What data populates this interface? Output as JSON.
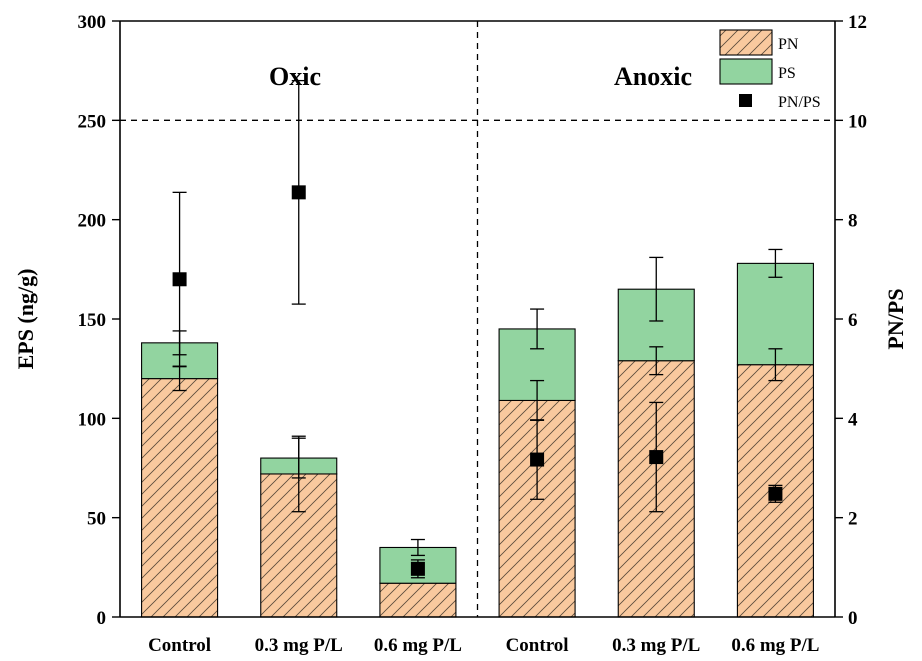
{
  "chart_data": {
    "type": "bar",
    "stacked": true,
    "categories": [
      "Control",
      "0.3 mg P/L",
      "0.6 mg P/L",
      "Control",
      "0.3 mg P/L",
      "0.6 mg P/L"
    ],
    "groups": [
      {
        "label": "Oxic",
        "indices": [
          0,
          1,
          2
        ]
      },
      {
        "label": "Anoxic",
        "indices": [
          3,
          4,
          5
        ]
      }
    ],
    "series": [
      {
        "name": "PN",
        "axis": "left",
        "kind": "bar",
        "pattern": "hatched",
        "color": "#F9C99E",
        "values": [
          120,
          72,
          17,
          109,
          129,
          127
        ],
        "error": [
          6,
          19,
          0,
          10,
          7,
          8
        ]
      },
      {
        "name": "PS",
        "axis": "left",
        "kind": "bar",
        "color": "#92D4A0",
        "values": [
          18,
          8,
          18,
          36,
          36,
          51
        ],
        "error": [
          6,
          10,
          4,
          10,
          16,
          7
        ]
      },
      {
        "name": "PN/PS",
        "axis": "right",
        "kind": "scatter",
        "marker": "square",
        "color": "#000000",
        "values": [
          6.8,
          8.55,
          0.97,
          3.17,
          3.22,
          2.48
        ],
        "error": [
          1.75,
          2.25,
          0.18,
          0.8,
          1.1,
          0.17
        ]
      }
    ],
    "ylabel": "EPS (ng/g)",
    "ylabel_right": "PN/PS",
    "xlabel": "",
    "ylim": [
      0,
      300
    ],
    "yticks": [
      0,
      50,
      100,
      150,
      200,
      250,
      300
    ],
    "ylim_right": [
      0,
      12
    ],
    "yticks_right": [
      0,
      2,
      4,
      6,
      8,
      10,
      12
    ],
    "reference_line_right": 10,
    "group_divider": "dashed vertical line between groups",
    "legend_position": "top-right",
    "grid": false
  }
}
